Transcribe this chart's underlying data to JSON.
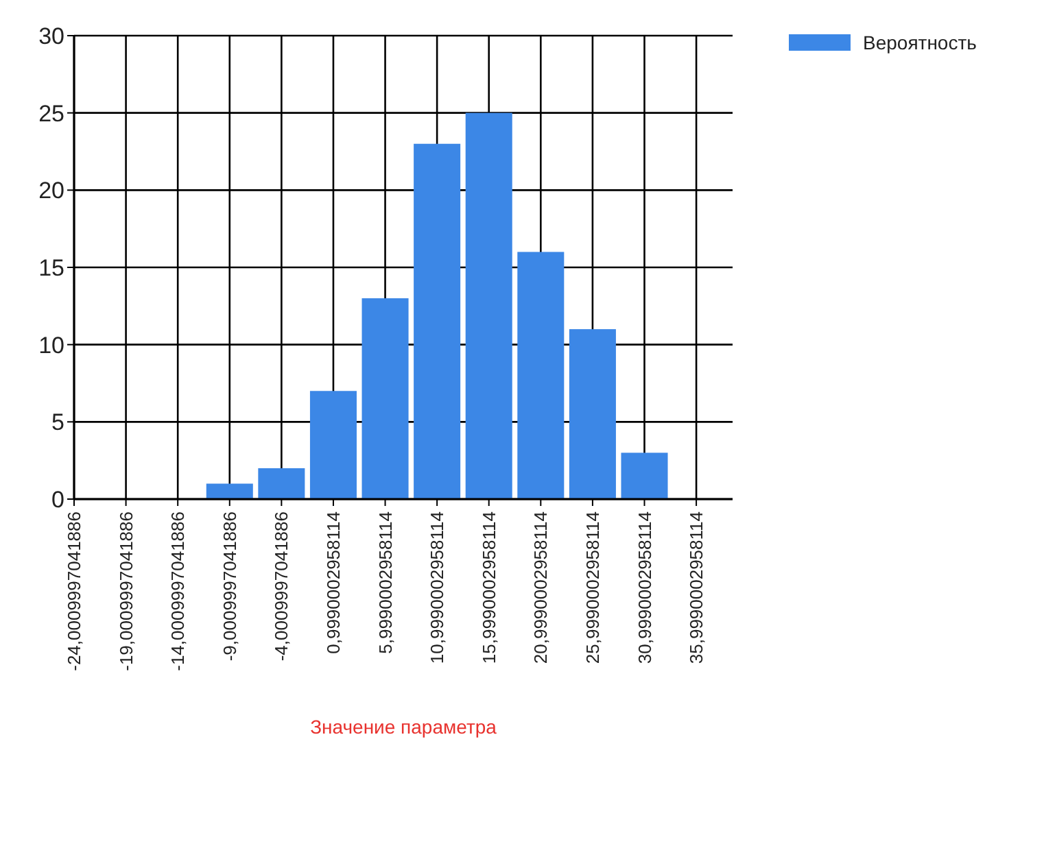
{
  "chart_data": {
    "type": "bar",
    "xlabel": "Значение параметра",
    "categories": [
      "-24,0009997041886",
      "-19,0009997041886",
      "-14,0009997041886",
      "-9,0009997041886",
      "-4,0009997041886",
      "0,9990002958114",
      "5,9990002958114",
      "10,9990002958114",
      "15,9990002958114",
      "20,9990002958114",
      "25,9990002958114",
      "30,9990002958114",
      "35,9990002958114"
    ],
    "series": [
      {
        "name": "Вероятность",
        "color": "#3c87e6",
        "values": [
          null,
          null,
          null,
          1,
          2,
          7,
          13,
          23,
          25,
          16,
          11,
          3,
          null
        ]
      }
    ],
    "ylim": [
      0,
      30
    ],
    "yticks": [
      0,
      5,
      10,
      15,
      20,
      25,
      30
    ],
    "grid": true,
    "legend": "top right"
  }
}
